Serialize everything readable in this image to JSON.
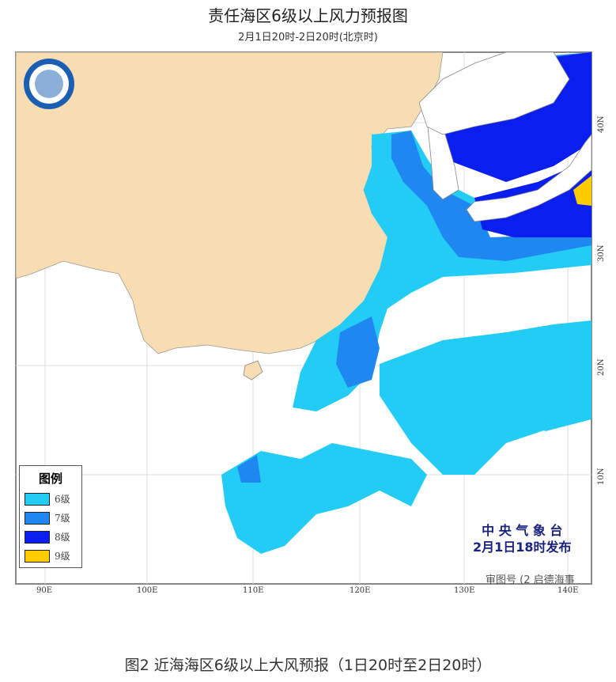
{
  "title": "责任海区6级以上风力预报图",
  "subtitle": "2月1日20时-2日20时(北京时)",
  "legend": {
    "title": "图例",
    "items": [
      {
        "label": "6级",
        "color": "#22ccf5"
      },
      {
        "label": "7级",
        "color": "#1e88f0"
      },
      {
        "label": "8级",
        "color": "#0a1ef0"
      },
      {
        "label": "9级",
        "color": "#ffcc00"
      }
    ]
  },
  "issuer": {
    "name": "中 央 气 象 台",
    "time": "2月1日18时发布"
  },
  "watermark": "审图号 (2 启德海事",
  "x_labels": [
    "90E",
    "100E",
    "110E",
    "120E",
    "130E",
    "140E"
  ],
  "y_labels": [
    "40N",
    "30N",
    "20N",
    "10N"
  ],
  "caption": "图2 近海海区6级以上大风预报（1日20时至2日20时）",
  "colors": {
    "land_china": "#f8dcb2",
    "frame": "#888888"
  }
}
